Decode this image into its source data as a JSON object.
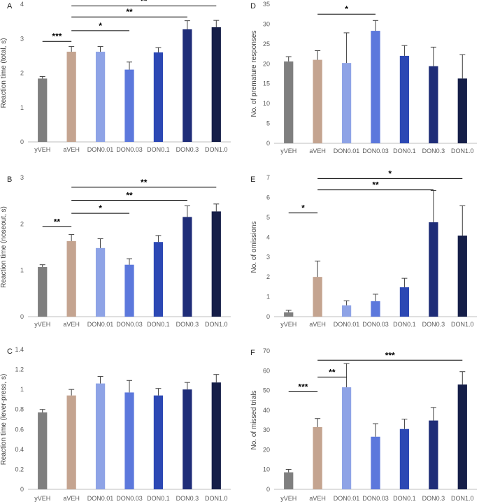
{
  "colors": {
    "bars": [
      "#7f7f7f",
      "#c4a490",
      "#8ea3e6",
      "#5c78dc",
      "#2c48b4",
      "#1f2d78",
      "#151e48"
    ],
    "axis": "#bfbfbf",
    "errbar": "#404040",
    "sig": "#000000"
  },
  "chart_data": [
    {
      "id": "A",
      "panel_label": "A",
      "type": "bar",
      "ylabel": "Reaction time (total, s)",
      "categories": [
        "yVEH",
        "aVEH",
        "DON0.01",
        "DON0.03",
        "DON0.1",
        "DON0.3",
        "DON1.0"
      ],
      "values": [
        1.84,
        2.62,
        2.62,
        2.1,
        2.6,
        3.27,
        3.33
      ],
      "errors": [
        0.06,
        0.15,
        0.15,
        0.22,
        0.14,
        0.25,
        0.2
      ],
      "ylim": [
        0,
        4
      ],
      "yticks": [
        "0",
        "1",
        "2",
        "3",
        "4"
      ],
      "sig": [
        {
          "from": "yVEH",
          "to": "aVEH",
          "label": "***",
          "y": 2.92
        },
        {
          "from": "aVEH",
          "to": "DON0.03",
          "label": "*",
          "y": 3.23
        },
        {
          "from": "aVEH",
          "to": "DON0.3",
          "label": "**",
          "y": 3.63
        },
        {
          "from": "aVEH",
          "to": "DON1.0",
          "label": "**",
          "y": 3.95
        }
      ]
    },
    {
      "id": "D",
      "panel_label": "D",
      "type": "bar",
      "ylabel": "No. of premature responses",
      "categories": [
        "yVEH",
        "aVEH",
        "DON0.01",
        "DON0.03",
        "DON0.1",
        "DON0.3",
        "DON1.0"
      ],
      "values": [
        20.6,
        21.0,
        20.2,
        28.3,
        22.0,
        19.4,
        16.3
      ],
      "errors": [
        1.2,
        2.3,
        7.6,
        2.6,
        2.6,
        4.8,
        6.0
      ],
      "ylim": [
        0,
        35
      ],
      "yticks": [
        "0",
        "5",
        "10",
        "15",
        "20",
        "25",
        "30",
        "35"
      ],
      "sig": [
        {
          "from": "aVEH",
          "to": "DON0.03",
          "label": "*",
          "y": 32.5
        }
      ]
    },
    {
      "id": "B",
      "panel_label": "B",
      "type": "bar",
      "ylabel": "Reaction time (noseout, s)",
      "categories": [
        "yVEH",
        "aVEH",
        "DON0.01",
        "DON0.03",
        "DON0.1",
        "DON0.3",
        "DON1.0"
      ],
      "values": [
        1.07,
        1.63,
        1.48,
        1.12,
        1.61,
        2.15,
        2.27
      ],
      "errors": [
        0.05,
        0.14,
        0.2,
        0.13,
        0.14,
        0.24,
        0.16
      ],
      "ylim": [
        0,
        3
      ],
      "yticks": [
        "0",
        "1",
        "2",
        "3"
      ],
      "sig": [
        {
          "from": "yVEH",
          "to": "aVEH",
          "label": "**",
          "y": 1.94
        },
        {
          "from": "aVEH",
          "to": "DON0.03",
          "label": "*",
          "y": 2.23
        },
        {
          "from": "aVEH",
          "to": "DON0.3",
          "label": "**",
          "y": 2.51
        },
        {
          "from": "aVEH",
          "to": "DON1.0",
          "label": "**",
          "y": 2.79
        }
      ]
    },
    {
      "id": "E",
      "panel_label": "E",
      "type": "bar",
      "ylabel": "No. of omissions",
      "categories": [
        "yVEH",
        "aVEH",
        "DON0.01",
        "DON0.03",
        "DON0.1",
        "DON0.3",
        "DON1.0"
      ],
      "values": [
        0.22,
        2.0,
        0.57,
        0.78,
        1.48,
        4.75,
        4.08
      ],
      "errors": [
        0.1,
        0.8,
        0.23,
        0.35,
        0.45,
        1.6,
        1.5
      ],
      "ylim": [
        0,
        7
      ],
      "yticks": [
        "0",
        "1",
        "2",
        "3",
        "4",
        "5",
        "6",
        "7"
      ],
      "sig": [
        {
          "from": "yVEH",
          "to": "aVEH",
          "label": "*",
          "y": 5.22
        },
        {
          "from": "aVEH",
          "to": "DON0.3",
          "label": "**",
          "y": 6.38
        },
        {
          "from": "aVEH",
          "to": "DON1.0",
          "label": "*",
          "y": 6.95
        }
      ]
    },
    {
      "id": "C",
      "panel_label": "C",
      "type": "bar",
      "ylabel": "Reaction time (lever-press, s)",
      "categories": [
        "yVEH",
        "aVEH",
        "DON0.01",
        "DON0.03",
        "DON0.1",
        "DON0.3",
        "DON1.0"
      ],
      "values": [
        0.77,
        0.94,
        1.06,
        0.97,
        0.94,
        1.0,
        1.07
      ],
      "errors": [
        0.03,
        0.06,
        0.07,
        0.12,
        0.07,
        0.07,
        0.08
      ],
      "ylim": [
        0,
        1.4
      ],
      "yticks": [
        "0",
        "0.2",
        "0.4",
        "0.6",
        "0.8",
        "1",
        "1.2",
        "1.4"
      ],
      "sig": []
    },
    {
      "id": "F",
      "panel_label": "F",
      "type": "bar",
      "ylabel": "No. of missed trials",
      "categories": [
        "yVEH",
        "aVEH",
        "DON0.01",
        "DON0.03",
        "DON0.1",
        "DON0.3",
        "DON1.0"
      ],
      "values": [
        8.6,
        31.5,
        51.6,
        26.6,
        30.5,
        34.8,
        53.0
      ],
      "errors": [
        1.5,
        4.3,
        12.0,
        6.6,
        5.0,
        6.6,
        6.5
      ],
      "ylim": [
        0,
        70
      ],
      "yticks": [
        "0",
        "10",
        "20",
        "30",
        "40",
        "50",
        "60",
        "70"
      ],
      "sig": [
        {
          "from": "yVEH",
          "to": "aVEH",
          "label": "***",
          "y": 49.3
        },
        {
          "from": "aVEH",
          "to": "DON0.01",
          "label": "**",
          "y": 56.8
        },
        {
          "from": "aVEH",
          "to": "DON1.0",
          "label": "***",
          "y": 65.3
        }
      ]
    }
  ]
}
